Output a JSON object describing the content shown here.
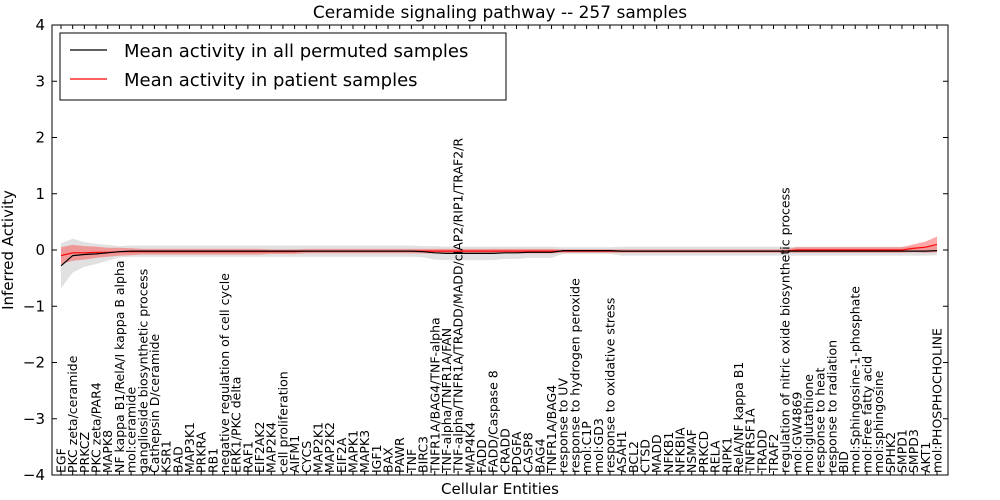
{
  "chart_data": {
    "type": "line",
    "title": "Ceramide signaling pathway -- 257 samples",
    "xlabel": "Cellular Entities",
    "ylabel": "Inferred Activity",
    "ylim": [
      -4,
      4
    ],
    "yticks": [
      "4",
      "3",
      "2",
      "1",
      "0",
      "−1",
      "−2",
      "−3",
      "−4"
    ],
    "grid": false,
    "legend_position": "top-left",
    "categories": [
      "EGF",
      "PKC zeta/ceramide",
      "PRKCZ",
      "PKC zeta/PAR4",
      "MAPK8",
      "NF kappa B1/RelA/I kappa B alpha",
      "mol:ceramide",
      "ganglioside biosynthetic process",
      "Cathepsin D/ceramide",
      "KSR1",
      "BAD",
      "MAP3K1",
      "PRKRA",
      "RB1",
      "negative regulation of cell cycle",
      "ERK1/PKC delta",
      "RAF1",
      "EIF2AK2",
      "MAP2K4",
      "cell proliferation",
      "AIFM1",
      "CYCS",
      "MAP2K1",
      "MAP2K2",
      "EIF2A",
      "MAPK1",
      "MAPK3",
      "IGF1",
      "BAX",
      "PAWR",
      "TNF",
      "BIRC3",
      "TNFR1A/BAG4/TNF-alpha",
      "TNF-alpha/TNFR1A/FAN",
      "TNF-alpha/TNFR1A/TRADD/MADD/cIAP2/RIP1/TRAF2/R",
      "MAP4K4",
      "FADD",
      "FADD/Caspase 8",
      "CRADD",
      "PDGFA",
      "CASP8",
      "BAG4",
      "TNFR1A/BAG4",
      "response to UV",
      "response to hydrogen peroxide",
      "mol:C1P",
      "mol:GD3",
      "response to oxidative stress",
      "ASAH1",
      "BCL2",
      "CTSD",
      "MADD",
      "NFKB1",
      "NFKBIA",
      "NSMAF",
      "PRKCD",
      "RELA",
      "RIPK1",
      "RelA/NF kappa B1",
      "TNFRSF1A",
      "TRADD",
      "TRAF2",
      "regulation of nitric oxide biosynthetic process",
      "mol:GW4869",
      "mol:glutathione",
      "response to heat",
      "response to radiation",
      "BID",
      "mol:Sphingosine-1-phosphate",
      "mol:Free fatty acid",
      "mol:sphingosine",
      "SPHK2",
      "SMPD1",
      "SMPD3",
      "AKT1",
      "mol:PHOSPHOCHOLINE"
    ],
    "series": [
      {
        "name": "Mean activity in all permuted samples",
        "color": "#000000",
        "values": [
          -0.28,
          -0.1,
          -0.08,
          -0.07,
          -0.05,
          -0.03,
          -0.02,
          -0.02,
          -0.02,
          -0.02,
          -0.02,
          -0.02,
          -0.02,
          -0.02,
          -0.02,
          -0.02,
          -0.02,
          -0.02,
          -0.02,
          -0.02,
          -0.02,
          -0.02,
          -0.02,
          -0.02,
          -0.02,
          -0.02,
          -0.02,
          -0.02,
          -0.02,
          -0.02,
          -0.02,
          -0.03,
          -0.05,
          -0.06,
          -0.06,
          -0.06,
          -0.06,
          -0.06,
          -0.05,
          -0.05,
          -0.04,
          -0.04,
          -0.04,
          -0.01,
          -0.01,
          -0.01,
          -0.01,
          -0.01,
          -0.02,
          -0.02,
          -0.02,
          -0.02,
          -0.02,
          -0.02,
          -0.02,
          -0.02,
          -0.02,
          -0.02,
          -0.02,
          -0.02,
          -0.02,
          -0.02,
          -0.02,
          -0.02,
          -0.02,
          -0.02,
          -0.02,
          -0.02,
          -0.02,
          -0.02,
          -0.02,
          -0.02,
          -0.02,
          -0.02,
          -0.02,
          -0.01
        ],
        "band": [
          0.4,
          0.3,
          0.22,
          0.18,
          0.14,
          0.1,
          0.1,
          0.1,
          0.1,
          0.1,
          0.1,
          0.1,
          0.1,
          0.1,
          0.1,
          0.1,
          0.1,
          0.1,
          0.1,
          0.1,
          0.1,
          0.1,
          0.1,
          0.1,
          0.1,
          0.1,
          0.1,
          0.1,
          0.1,
          0.1,
          0.1,
          0.1,
          0.12,
          0.12,
          0.12,
          0.12,
          0.12,
          0.12,
          0.11,
          0.11,
          0.1,
          0.1,
          0.1,
          0.06,
          0.06,
          0.06,
          0.06,
          0.06,
          0.08,
          0.08,
          0.08,
          0.08,
          0.08,
          0.08,
          0.08,
          0.08,
          0.08,
          0.08,
          0.08,
          0.08,
          0.08,
          0.08,
          0.08,
          0.08,
          0.08,
          0.08,
          0.08,
          0.08,
          0.08,
          0.08,
          0.08,
          0.08,
          0.08,
          0.08,
          0.08,
          0.08
        ]
      },
      {
        "name": "Mean activity in patient samples",
        "color": "#ff0000",
        "values": [
          -0.1,
          -0.05,
          -0.05,
          -0.04,
          -0.04,
          -0.03,
          -0.03,
          -0.03,
          -0.03,
          -0.03,
          -0.03,
          -0.03,
          -0.03,
          -0.03,
          -0.03,
          -0.03,
          -0.03,
          -0.03,
          -0.03,
          -0.03,
          -0.03,
          -0.02,
          -0.02,
          -0.02,
          -0.02,
          -0.02,
          -0.02,
          -0.02,
          -0.02,
          -0.02,
          -0.02,
          -0.02,
          -0.02,
          -0.02,
          -0.02,
          -0.02,
          -0.02,
          -0.02,
          -0.02,
          -0.02,
          -0.02,
          -0.02,
          -0.02,
          -0.02,
          -0.02,
          -0.02,
          -0.02,
          -0.02,
          -0.02,
          -0.02,
          -0.02,
          -0.02,
          -0.02,
          -0.02,
          -0.02,
          -0.02,
          -0.02,
          -0.02,
          -0.02,
          -0.02,
          -0.02,
          -0.02,
          -0.02,
          0.0,
          0.0,
          0.0,
          0.0,
          0.0,
          0.0,
          0.0,
          0.0,
          0.0,
          0.0,
          0.03,
          0.05,
          0.1
        ],
        "band": [
          0.15,
          0.14,
          0.12,
          0.1,
          0.08,
          0.07,
          0.06,
          0.05,
          0.05,
          0.05,
          0.05,
          0.05,
          0.05,
          0.05,
          0.05,
          0.05,
          0.05,
          0.05,
          0.04,
          0.04,
          0.04,
          0.04,
          0.04,
          0.04,
          0.04,
          0.04,
          0.04,
          0.04,
          0.04,
          0.04,
          0.04,
          0.04,
          0.04,
          0.04,
          0.04,
          0.04,
          0.04,
          0.04,
          0.04,
          0.04,
          0.04,
          0.04,
          0.04,
          0.03,
          0.03,
          0.03,
          0.03,
          0.03,
          0.03,
          0.03,
          0.03,
          0.03,
          0.03,
          0.03,
          0.03,
          0.03,
          0.03,
          0.03,
          0.03,
          0.03,
          0.03,
          0.03,
          0.03,
          0.05,
          0.05,
          0.05,
          0.05,
          0.05,
          0.05,
          0.05,
          0.05,
          0.05,
          0.05,
          0.07,
          0.1,
          0.14
        ]
      }
    ]
  }
}
